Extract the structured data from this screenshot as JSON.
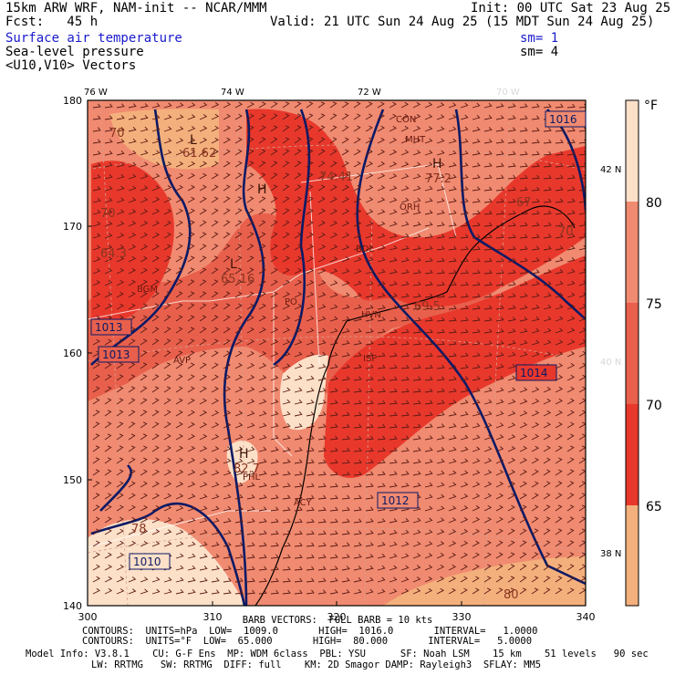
{
  "header": {
    "model_title": "15km ARW WRF, NAM-init -- NCAR/MMM",
    "init_time": "Init: 00 UTC Sat 23 Aug 25",
    "forecast_hour": "Fcst:   45 h",
    "valid_time": "Valid: 21 UTC Sun 24 Aug 25 (15 MDT Sun 24 Aug 25)",
    "field1": "Surface air temperature",
    "field1_sm": "sm= 1",
    "field2": "Sea-level pressure",
    "field2_sm": "sm= 4",
    "field3": "<U10,V10> Vectors"
  },
  "map": {
    "top_lon_labels": [
      "76 W",
      "74 W",
      "72 W",
      "70 W"
    ],
    "right_lat_labels": [
      "42 N",
      "40 N",
      "38 N"
    ],
    "left_axis_ticks": [
      "180",
      "170",
      "160",
      "150",
      "140"
    ],
    "bottom_axis_ticks": [
      "300",
      "310",
      "320",
      "330",
      "340"
    ],
    "isobar_labels": [
      "1016",
      "1013",
      "1013",
      "1014",
      "1012",
      "1010"
    ],
    "temp_labels": [
      "70",
      "61.62",
      "70",
      "64.3",
      "65.16",
      "74.41",
      "77.2",
      "67",
      "70",
      "69.5",
      "82.7",
      "80",
      "78"
    ],
    "high_low_marks": [
      "L",
      "L",
      "H",
      "H",
      "H"
    ],
    "station_labels": [
      "CON",
      "MHT",
      "ORH",
      "BDL",
      "PO",
      "HVN",
      "ISP",
      "BGM",
      "AVP",
      "PHL",
      "ACY"
    ],
    "colors": {
      "above_80": "#fce0c8",
      "75_80": "#f08a70",
      "70_75": "#e8604c",
      "65_70": "#e8382c",
      "below_65": "#f4b07c",
      "isobar": "#0b1a66",
      "barb": "#5a1a14"
    }
  },
  "colorbar": {
    "units": "°F",
    "tick_labels": [
      "80",
      "75",
      "70",
      "65"
    ],
    "colors": [
      "#fce0c8",
      "#f08a70",
      "#e8604c",
      "#e8382c",
      "#f4b07c"
    ]
  },
  "footer": {
    "barb_line": "BARB VECTORS:  FULL BARB = 10 kts",
    "contours1": "CONTOURS:  UNITS=hPa  LOW=  1009.0       HIGH=  1016.0       INTERVAL=   1.0000",
    "contours2": "CONTOURS:  UNITS=°F  LOW=  65.000       HIGH=  80.000       INTERVAL=   5.0000",
    "model_info1": "Model Info: V3.8.1    CU: G-F Ens  MP: WDM 6class  PBL: YSU      SF: Noah LSM    15 km    51 levels   90 sec",
    "model_info2": "LW: RRTMG   SW: RRTMG  DIFF: full    KM: 2D Smagor DAMP: Rayleigh3  SFLAY: MM5"
  }
}
